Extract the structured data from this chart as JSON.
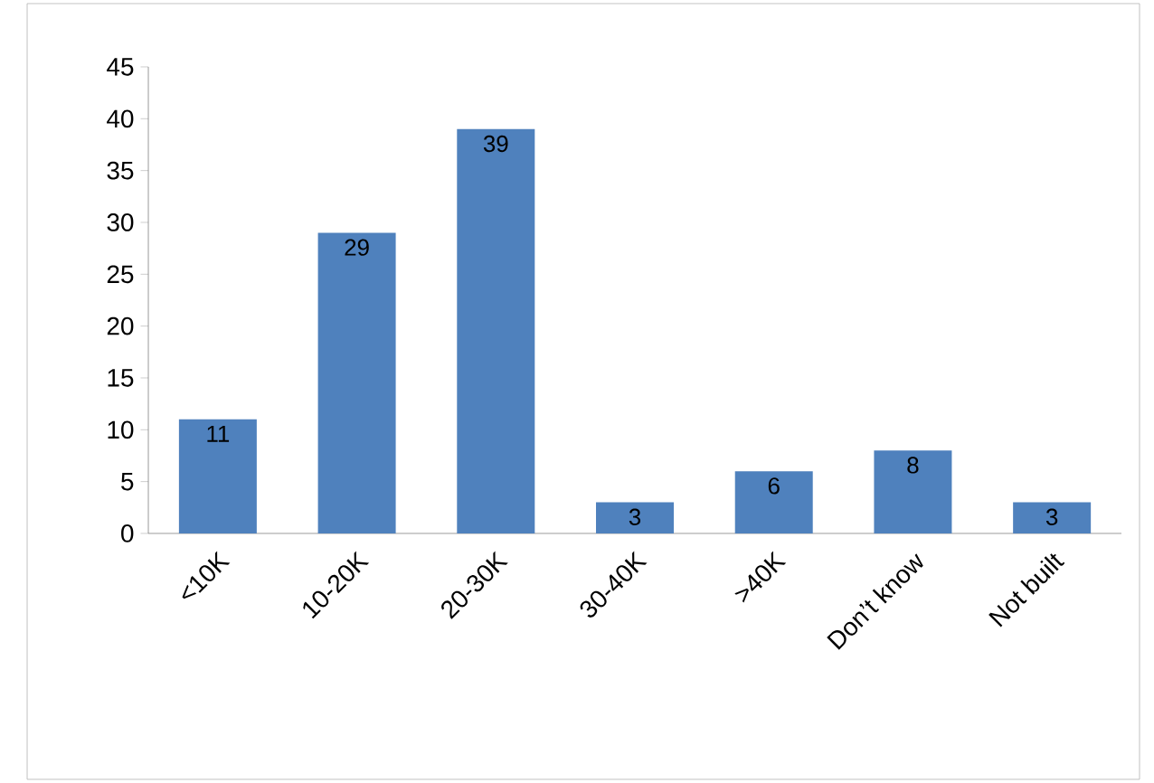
{
  "chart_data": {
    "type": "bar",
    "categories": [
      "<10K",
      "10-20K",
      "20-30K",
      "30-40K",
      ">40K",
      "Don’t know",
      "Not built"
    ],
    "values": [
      11,
      29,
      39,
      3,
      6,
      8,
      3
    ],
    "color": "#4f81bd",
    "ylim": [
      0,
      45
    ],
    "yticks": [
      0,
      5,
      10,
      15,
      20,
      25,
      30,
      35,
      40,
      45
    ],
    "data_labels": true
  }
}
